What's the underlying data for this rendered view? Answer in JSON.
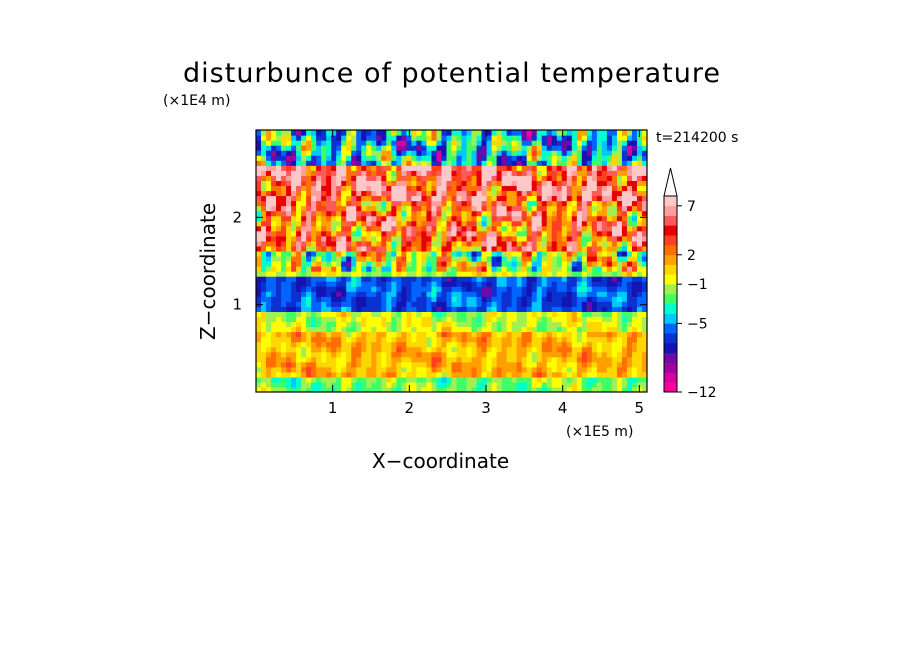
{
  "chart_data": {
    "type": "heatmap",
    "title": "disturbunce of potential temperature",
    "xlabel": "X−coordinate",
    "ylabel": "Z−coordinate",
    "x_unit": "(×1E5 m)",
    "y_unit": "(×1E4 m)",
    "time_label": "t=214200 s",
    "x_ticks": [
      "1",
      "2",
      "3",
      "4",
      "5"
    ],
    "x_tick_values": [
      1,
      2,
      3,
      4,
      5
    ],
    "y_ticks": [
      "1",
      "2"
    ],
    "y_tick_values": [
      1,
      2
    ],
    "xlim": [
      0,
      5.1
    ],
    "ylim": [
      0,
      3.0
    ],
    "colorbar": {
      "colors": [
        "#ff00a0",
        "#d6009e",
        "#a0009c",
        "#6e0aa8",
        "#1414b4",
        "#0a32d0",
        "#0064ff",
        "#00c8ff",
        "#00ffcc",
        "#40ff66",
        "#a0f050",
        "#ffff00",
        "#ffd700",
        "#ffa000",
        "#ff7000",
        "#ff4020",
        "#e60000",
        "#ff5a5a",
        "#ff9e9e",
        "#ffc8c8"
      ],
      "tick_labels": [
        "−12",
        "−5",
        "−1",
        "2",
        "7"
      ],
      "tick_levels": [
        -12,
        -5,
        -1,
        2,
        7
      ],
      "extend": "max"
    },
    "bands": [
      {
        "z_range": [
          0.0,
          0.2
        ],
        "value": -2
      },
      {
        "z_range": [
          0.2,
          0.7
        ],
        "value": 1
      },
      {
        "z_range": [
          0.7,
          0.9
        ],
        "value": -1
      },
      {
        "z_range": [
          0.9,
          1.3
        ],
        "value": -6
      },
      {
        "z_range": [
          1.3,
          1.6
        ],
        "value": -1
      },
      {
        "z_range": [
          1.6,
          2.2
        ],
        "value": 3
      },
      {
        "z_range": [
          2.2,
          2.6
        ],
        "value": 5
      },
      {
        "z_range": [
          2.6,
          3.0
        ],
        "value": -4
      }
    ]
  },
  "colors": {
    "frame": "#000000",
    "background": "#ffffff"
  }
}
